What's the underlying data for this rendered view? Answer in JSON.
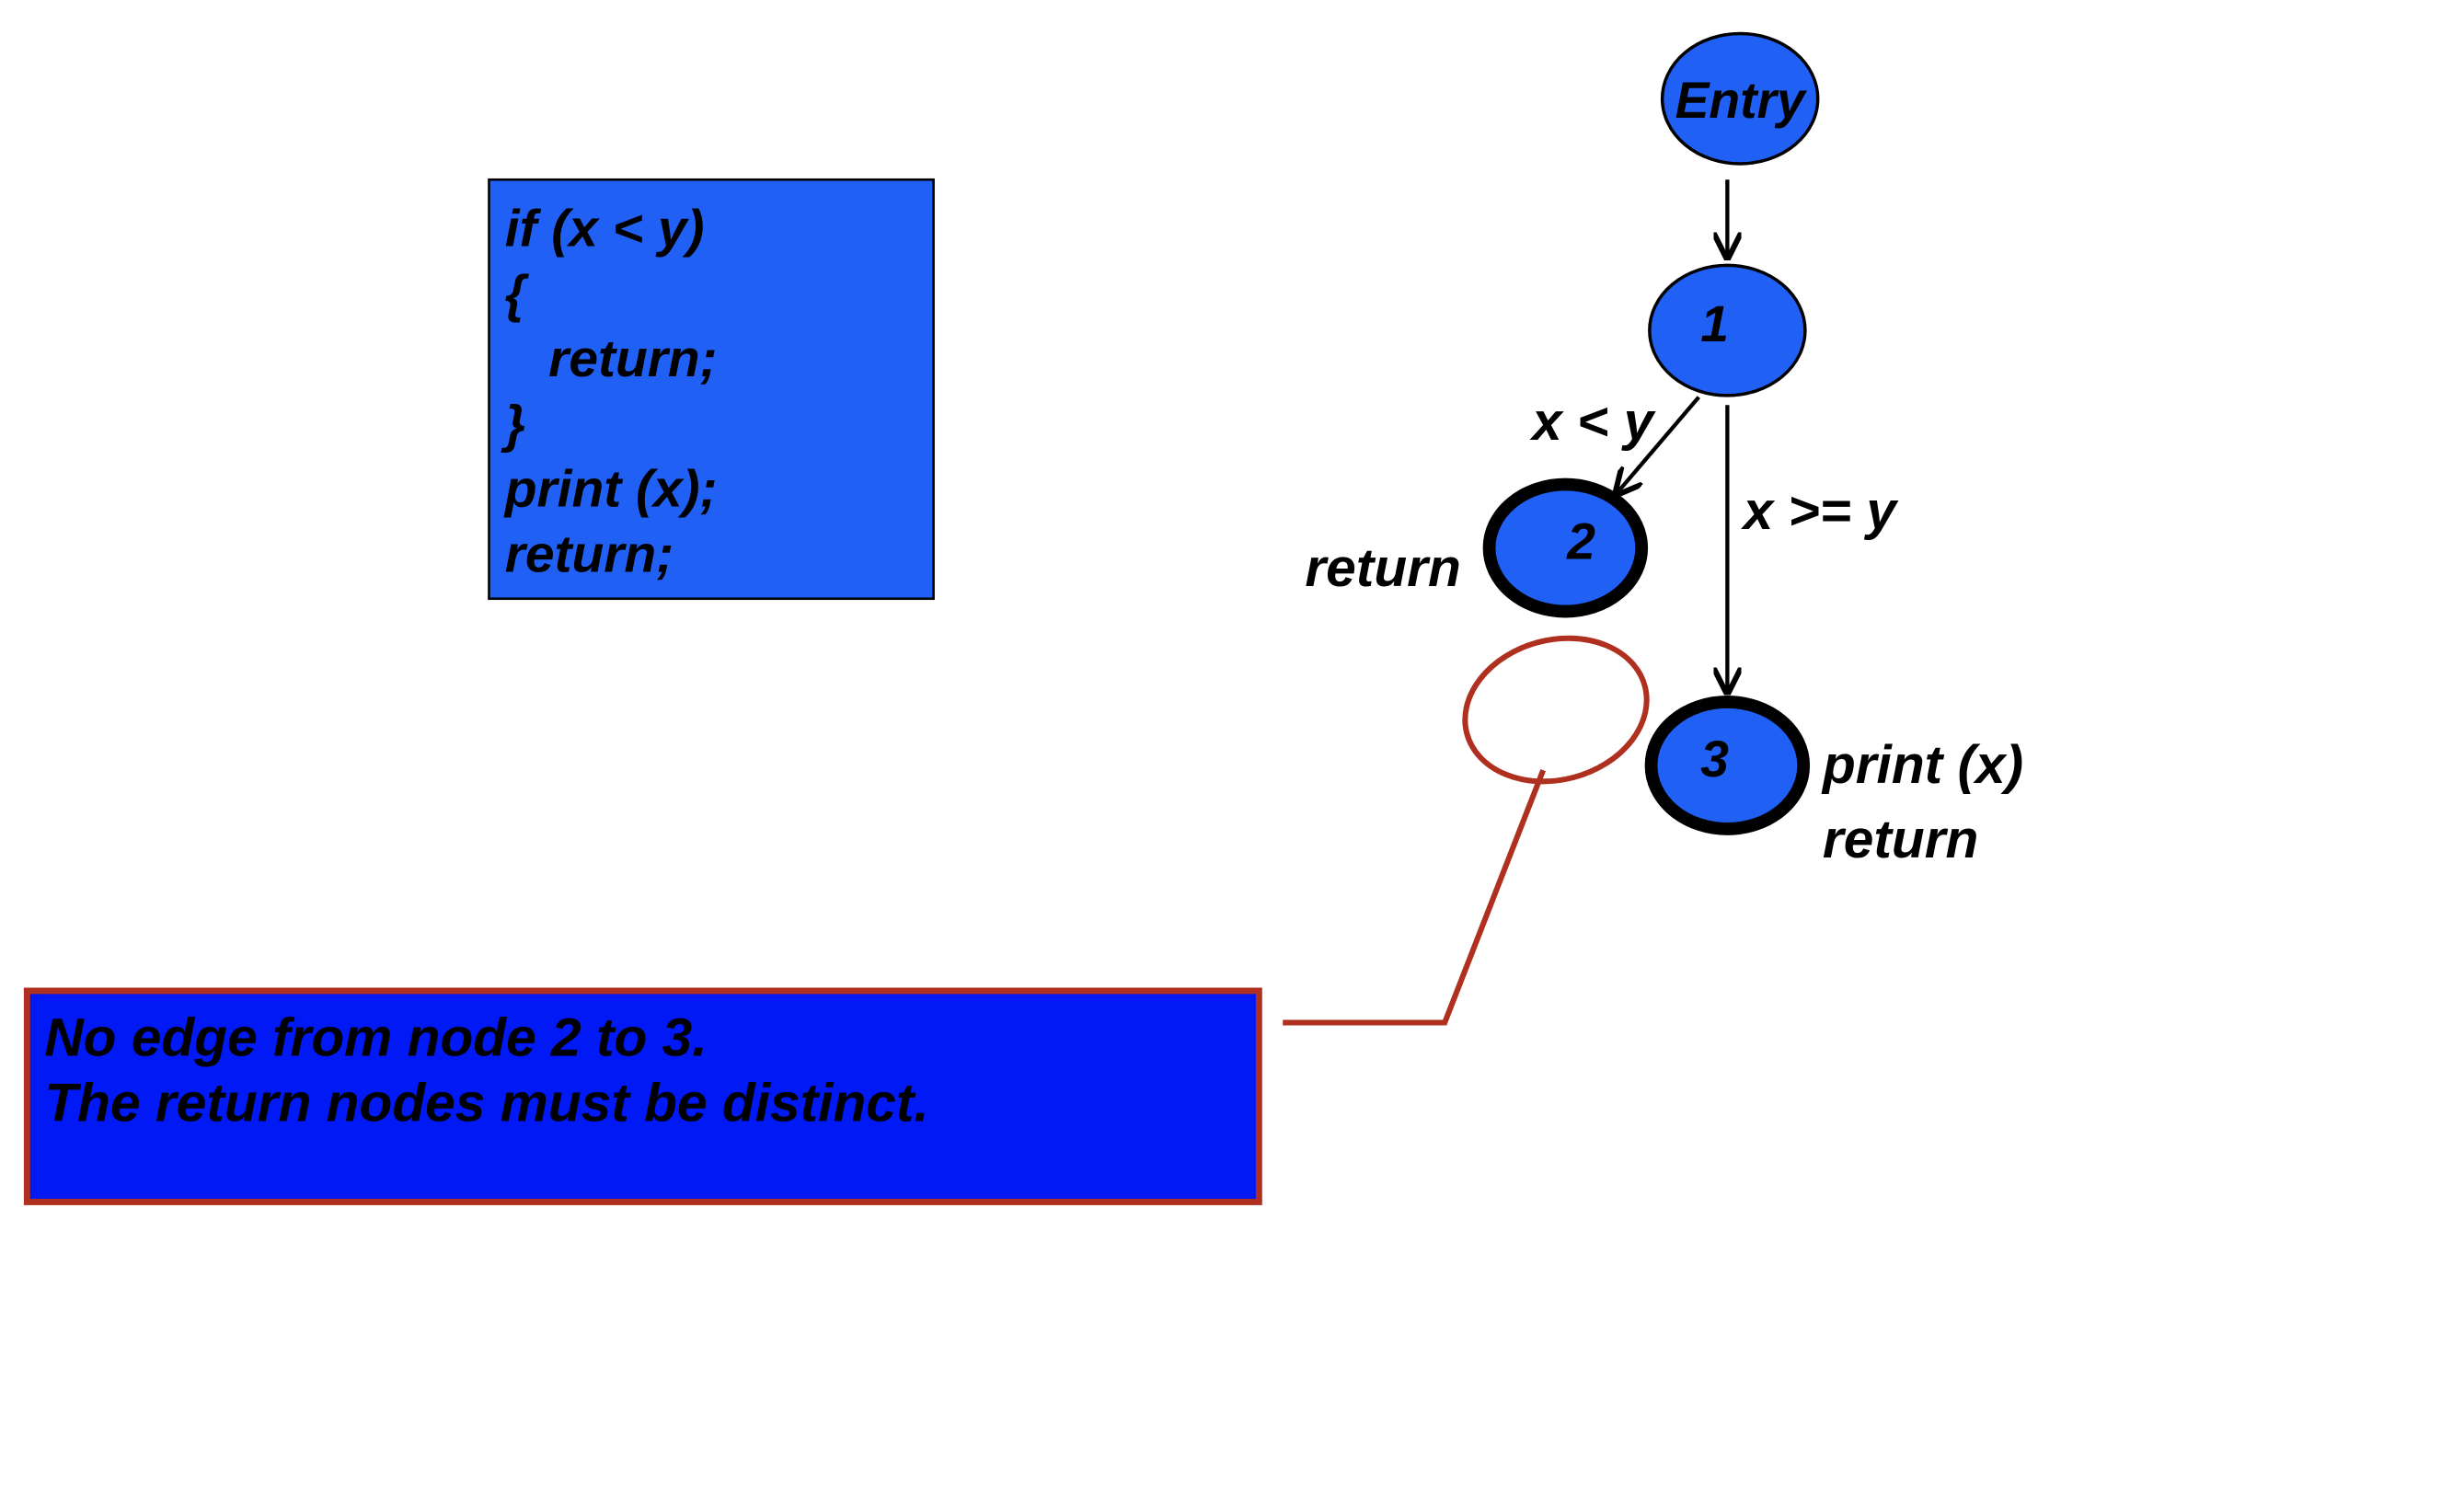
{
  "code": {
    "lines": [
      "if (x < y)",
      "{",
      "   return;",
      "}",
      "print (x);",
      "return;"
    ]
  },
  "nodes": [
    {
      "label": "Entry"
    },
    {
      "label": "1"
    },
    {
      "label": "2",
      "note": "return"
    },
    {
      "label": "3",
      "notes": [
        "print (x)",
        "return"
      ]
    }
  ],
  "edges": [
    {
      "label": "x < y"
    },
    {
      "label": "x >= y"
    }
  ],
  "callout": {
    "lines": [
      "No edge from node 2 to 3.",
      "The return nodes must be distinct."
    ]
  }
}
